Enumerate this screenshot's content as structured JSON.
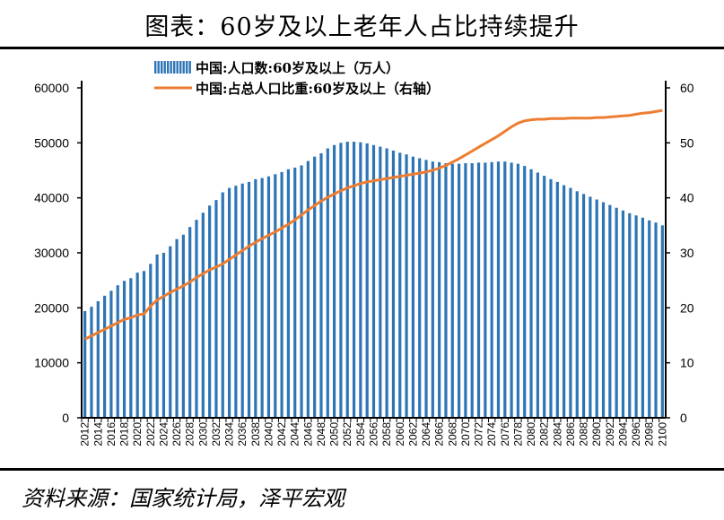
{
  "title": "图表：60岁及以上老年人占比持续提升",
  "source": "资料来源：国家统计局，泽平宏观",
  "chart_data": {
    "type": "bar+line",
    "categories": [
      2012,
      2013,
      2014,
      2015,
      2016,
      2017,
      2018,
      2019,
      2020,
      2021,
      2022,
      2023,
      2024,
      2025,
      2026,
      2027,
      2028,
      2029,
      2030,
      2031,
      2032,
      2033,
      2034,
      2035,
      2036,
      2037,
      2038,
      2039,
      2040,
      2041,
      2042,
      2043,
      2044,
      2045,
      2046,
      2047,
      2048,
      2049,
      2050,
      2051,
      2052,
      2053,
      2054,
      2055,
      2056,
      2057,
      2058,
      2059,
      2060,
      2061,
      2062,
      2063,
      2064,
      2065,
      2066,
      2067,
      2068,
      2069,
      2070,
      2071,
      2072,
      2073,
      2074,
      2075,
      2076,
      2077,
      2078,
      2079,
      2080,
      2081,
      2082,
      2083,
      2084,
      2085,
      2086,
      2087,
      2088,
      2089,
      2090,
      2091,
      2092,
      2093,
      2094,
      2095,
      2096,
      2097,
      2098,
      2099,
      2100
    ],
    "series": [
      {
        "name": "中国:人口数:60岁及以上（万人）",
        "type": "bar",
        "axis": "left",
        "color": "#2e75b6",
        "values": [
          19400,
          20200,
          21200,
          22200,
          23100,
          24100,
          24900,
          25400,
          26400,
          26700,
          28000,
          29700,
          30000,
          31200,
          32500,
          33300,
          34700,
          36000,
          37300,
          38600,
          39600,
          41000,
          41800,
          42200,
          42600,
          42900,
          43400,
          43600,
          43900,
          44300,
          44700,
          45200,
          45500,
          45900,
          46700,
          47500,
          48100,
          49000,
          49600,
          50000,
          50200,
          50200,
          50100,
          49900,
          49600,
          49300,
          49000,
          48600,
          48200,
          47900,
          47500,
          47200,
          46900,
          46600,
          46500,
          46300,
          46200,
          46200,
          46300,
          46300,
          46400,
          46400,
          46500,
          46600,
          46600,
          46400,
          46200,
          45800,
          45200,
          44600,
          44000,
          43400,
          42900,
          42300,
          41800,
          41200,
          40700,
          40200,
          39700,
          39200,
          38700,
          38200,
          37700,
          37200,
          36800,
          36400,
          35900,
          35500,
          35000
        ]
      },
      {
        "name": "中国:占总人口比重:60岁及以上（右轴）",
        "type": "line",
        "axis": "right",
        "color": "#ed7d31",
        "values": [
          14.3,
          14.9,
          15.5,
          16.1,
          16.7,
          17.3,
          17.9,
          18.2,
          18.7,
          18.9,
          20.3,
          21.4,
          22.1,
          22.8,
          23.4,
          24.0,
          24.7,
          25.5,
          26.2,
          26.9,
          27.4,
          28.0,
          28.8,
          29.6,
          30.4,
          31.2,
          31.9,
          32.6,
          33.2,
          33.8,
          34.5,
          35.2,
          36.0,
          36.9,
          37.8,
          38.6,
          39.4,
          40.1,
          40.7,
          41.3,
          41.8,
          42.2,
          42.6,
          42.9,
          43.1,
          43.3,
          43.5,
          43.7,
          43.9,
          44.1,
          44.3,
          44.5,
          44.7,
          45.0,
          45.4,
          45.9,
          46.5,
          47.1,
          47.8,
          48.5,
          49.2,
          49.9,
          50.6,
          51.3,
          52.1,
          52.9,
          53.6,
          54.0,
          54.2,
          54.3,
          54.3,
          54.4,
          54.4,
          54.4,
          54.5,
          54.5,
          54.5,
          54.5,
          54.6,
          54.6,
          54.7,
          54.8,
          54.9,
          55.0,
          55.2,
          55.4,
          55.5,
          55.7,
          55.9
        ]
      }
    ],
    "y_left": {
      "range": [
        0,
        60000
      ],
      "ticks": [
        "0",
        "10000",
        "20000",
        "30000",
        "40000",
        "50000",
        "60000"
      ]
    },
    "y_right": {
      "range": [
        0,
        60
      ],
      "ticks": [
        "0",
        "10",
        "20",
        "30",
        "40",
        "50",
        "60"
      ]
    },
    "x_tick_every": 2,
    "grid": false,
    "legend_placement": "top-center"
  }
}
